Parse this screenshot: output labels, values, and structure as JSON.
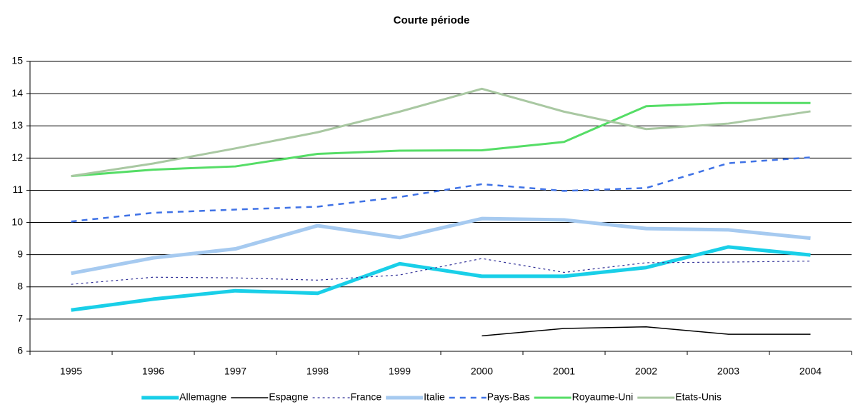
{
  "chart_data": {
    "type": "line",
    "title": "Courte période",
    "categories": [
      "1995",
      "1996",
      "1997",
      "1998",
      "1999",
      "2000",
      "2001",
      "2002",
      "2003",
      "2004"
    ],
    "series": [
      {
        "name": "Allemagne",
        "color": "#19cfe8",
        "style": "solid",
        "values": [
          7.28,
          7.62,
          7.88,
          7.8,
          8.72,
          8.33,
          8.33,
          8.6,
          9.24,
          8.99
        ]
      },
      {
        "name": "Espagne",
        "color": "#000000",
        "style": "solid",
        "values": [
          null,
          null,
          null,
          null,
          null,
          6.48,
          6.71,
          6.76,
          6.53,
          6.53
        ]
      },
      {
        "name": "France",
        "color": "#333399",
        "style": "dotted",
        "values": [
          8.08,
          8.3,
          8.28,
          8.21,
          8.37,
          8.88,
          8.45,
          8.75,
          8.77,
          8.8
        ]
      },
      {
        "name": "Italie",
        "color": "#a6caf0",
        "style": "solid",
        "values": [
          8.42,
          8.9,
          9.18,
          9.9,
          9.53,
          10.12,
          10.08,
          9.81,
          9.77,
          9.51
        ]
      },
      {
        "name": "Pays-Bas",
        "color": "#3f72e6",
        "style": "dashed",
        "values": [
          10.03,
          10.3,
          10.4,
          10.49,
          10.79,
          11.19,
          10.98,
          11.07,
          11.84,
          12.02
        ]
      },
      {
        "name": "Royaume-Uni",
        "color": "#55dd66",
        "style": "solid",
        "values": [
          11.44,
          11.64,
          11.74,
          12.13,
          12.23,
          12.24,
          12.5,
          13.61,
          13.71,
          13.71
        ]
      },
      {
        "name": "Etats-Unis",
        "color": "#a9c8a2",
        "style": "solid",
        "values": [
          11.44,
          11.83,
          12.3,
          12.8,
          13.44,
          14.15,
          13.44,
          12.9,
          13.07,
          13.45
        ]
      }
    ],
    "ylim": [
      6,
      15
    ],
    "yticks": [
      6,
      7,
      8,
      9,
      10,
      11,
      12,
      13,
      14,
      15
    ],
    "grid": true,
    "legend": "bottom"
  }
}
